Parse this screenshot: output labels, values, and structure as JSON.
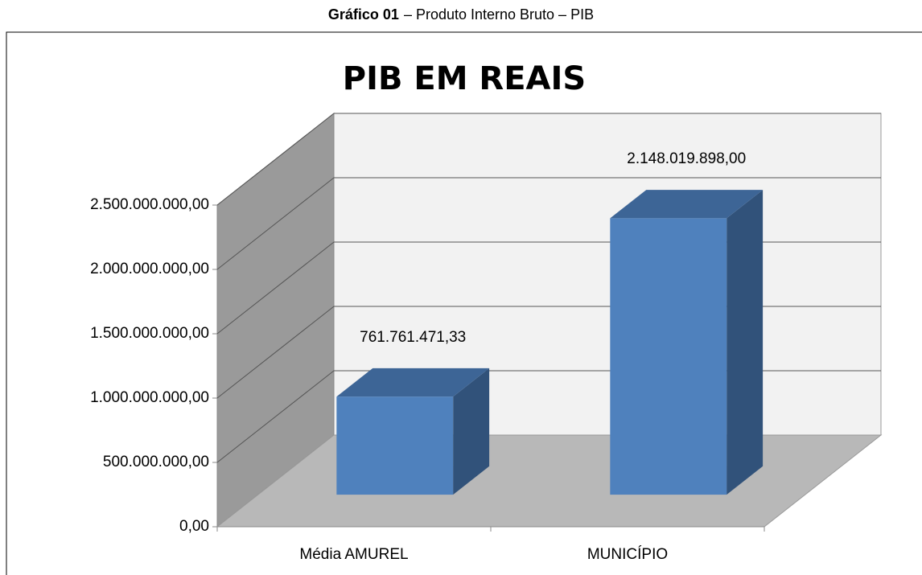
{
  "caption": {
    "label": "Gráfico 01",
    "text": "– Produto Interno Bruto – PIB"
  },
  "chart_data": {
    "type": "bar3d",
    "title": "PIB EM REAIS",
    "categories": [
      "Média AMUREL",
      "MUNICÍPIO"
    ],
    "values": [
      761761471.33,
      2148019898.0
    ],
    "value_labels": [
      "761.761.471,33",
      "2.148.019.898,00"
    ],
    "color": "#4f81bd",
    "ylim": [
      0,
      2500000000
    ],
    "yticks": [
      {
        "value": 0,
        "label": "0,00"
      },
      {
        "value": 500000000,
        "label": "500.000.000,00"
      },
      {
        "value": 1000000000,
        "label": "1.000.000.000,00"
      },
      {
        "value": 1500000000,
        "label": "1.500.000.000,00"
      },
      {
        "value": 2000000000,
        "label": "2.000.000.000,00"
      },
      {
        "value": 2500000000,
        "label": "2.500.000.000,00"
      }
    ],
    "grid": true
  }
}
